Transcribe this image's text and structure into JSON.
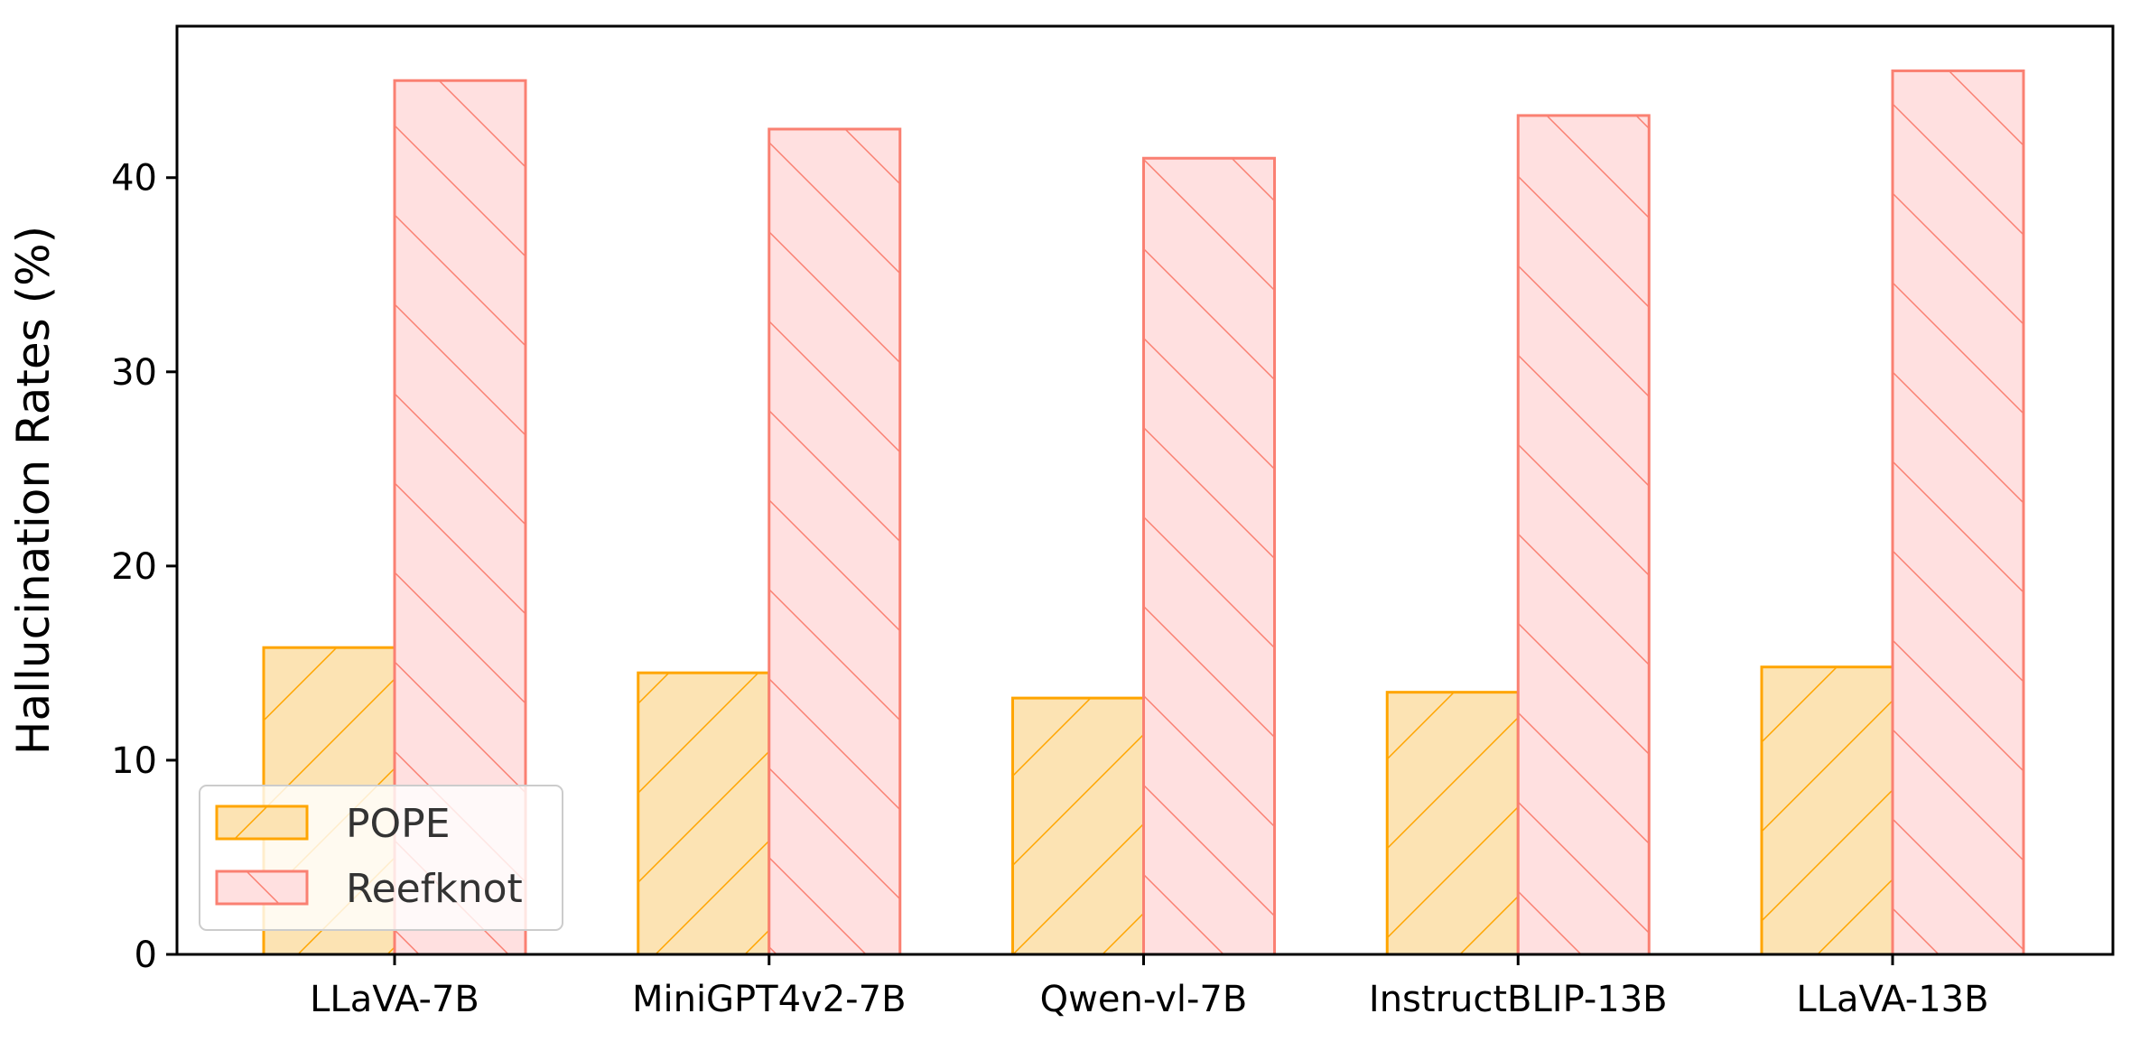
{
  "chart_data": {
    "type": "bar",
    "title": "",
    "xlabel": "",
    "ylabel": "Hallucination Rates (%)",
    "categories": [
      "LLaVA-7B",
      "MiniGPT4v2-7B",
      "Qwen-vl-7B",
      "InstructBLIP-13B",
      "LLaVA-13B"
    ],
    "series": [
      {
        "name": "POPE",
        "values": [
          15.8,
          14.5,
          13.2,
          13.5,
          14.8
        ],
        "color": "#FFA500",
        "fill": "#FCE3B3",
        "hatch": "/"
      },
      {
        "name": "Reefknot",
        "values": [
          45.0,
          42.5,
          41.0,
          43.2,
          45.5
        ],
        "color": "#FA8072",
        "fill": "#FFE0E0",
        "hatch": "\\"
      }
    ],
    "ylim": [
      0,
      47.8
    ],
    "yticks": [
      0,
      10,
      20,
      30,
      40
    ],
    "grid": false,
    "legend_position": "lower-left"
  }
}
